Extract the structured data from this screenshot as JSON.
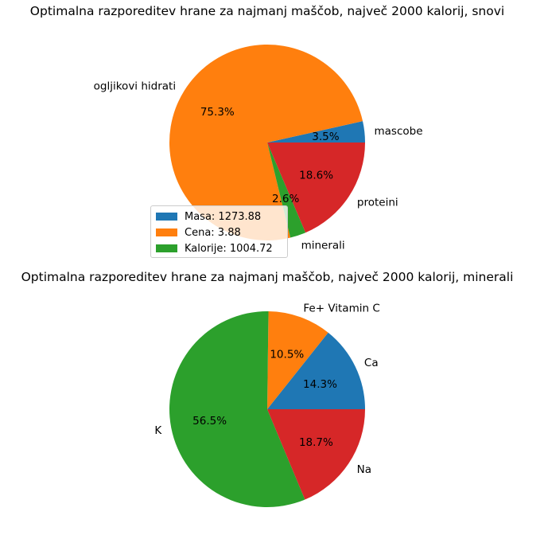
{
  "colors": {
    "blue": "#1f77b4",
    "orange": "#ff7f0e",
    "green": "#2ca02c",
    "red": "#d62728"
  },
  "chart_data": [
    {
      "type": "pie",
      "title": "Optimalna razporeditev hrane za najmanj maščob, največ 2000 kalorij, snovi",
      "slices": [
        {
          "label": "mascobe",
          "pct_label": "3.5%",
          "value": 3.5,
          "color": "#1f77b4"
        },
        {
          "label": "ogljikovi hidrati",
          "pct_label": "75.3%",
          "value": 75.3,
          "color": "#ff7f0e"
        },
        {
          "label": "minerali",
          "pct_label": "2.6%",
          "value": 2.6,
          "color": "#2ca02c"
        },
        {
          "label": "proteini",
          "pct_label": "18.6%",
          "value": 18.6,
          "color": "#d62728"
        }
      ],
      "legend": {
        "placement": "lower-left",
        "entries": [
          {
            "text": "Masa: 1273.88",
            "color": "#1f77b4"
          },
          {
            "text": "Cena: 3.88",
            "color": "#ff7f0e"
          },
          {
            "text": "Kalorije: 1004.72",
            "color": "#2ca02c"
          }
        ]
      }
    },
    {
      "type": "pie",
      "title": "Optimalna razporeditev hrane za najmanj maščob, največ 2000 kalorij, minerali",
      "slices": [
        {
          "label": "Ca",
          "pct_label": "14.3%",
          "value": 14.3,
          "color": "#1f77b4"
        },
        {
          "label": "Fe+ Vitamin C",
          "pct_label": "10.5%",
          "value": 10.5,
          "color": "#ff7f0e"
        },
        {
          "label": "K",
          "pct_label": "56.5%",
          "value": 56.5,
          "color": "#2ca02c"
        },
        {
          "label": "Na",
          "pct_label": "18.7%",
          "value": 18.7,
          "color": "#d62728"
        }
      ]
    }
  ]
}
